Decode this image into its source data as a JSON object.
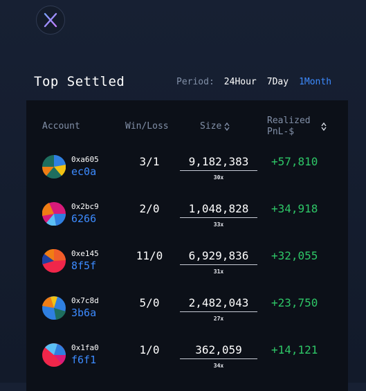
{
  "header": {
    "title": "Top Settled",
    "period_label": "Period:",
    "period_options": [
      "24Hour",
      "7Day",
      "1Month"
    ],
    "active_period": "1Month"
  },
  "colors": {
    "accent": "#3d8bff",
    "positive": "#2ec767",
    "panel": "#0c1018"
  },
  "table": {
    "columns": {
      "account": "Account",
      "winloss": "Win/Loss",
      "size": "Size",
      "pnl_line1": "Realized",
      "pnl_line2": "PnL-$"
    },
    "rows": [
      {
        "addr_top": "0xa605",
        "addr_bottom": "ec0a",
        "winloss": "3/1",
        "size": "9,182,383",
        "leverage": "30x",
        "pnl": "+57,810"
      },
      {
        "addr_top": "0x2bc9",
        "addr_bottom": "6266",
        "winloss": "2/0",
        "size": "1,048,828",
        "leverage": "33x",
        "pnl": "+34,918"
      },
      {
        "addr_top": "0xe145",
        "addr_bottom": "8f5f",
        "winloss": "11/0",
        "size": "6,929,836",
        "leverage": "31x",
        "pnl": "+32,055"
      },
      {
        "addr_top": "0x7c8d",
        "addr_bottom": "3b6a",
        "winloss": "5/0",
        "size": "2,482,043",
        "leverage": "27x",
        "pnl": "+23,750"
      },
      {
        "addr_top": "0x1fa0",
        "addr_bottom": "f6f1",
        "winloss": "1/0",
        "size": "362,059",
        "leverage": "34x",
        "pnl": "+14,121"
      }
    ]
  }
}
